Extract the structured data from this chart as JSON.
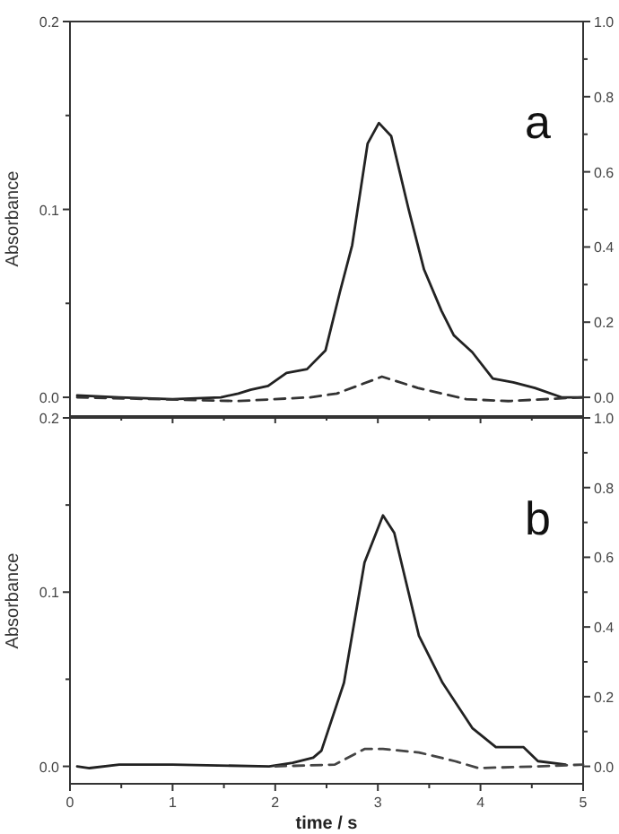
{
  "chart_data": [
    {
      "type": "line",
      "ylabel": "Absorbance",
      "annotations": [
        "a"
      ],
      "tick_labels": "y",
      "marker": "none",
      "xlim": [
        0,
        5
      ],
      "xticks": [
        {
          "value": 0,
          "label": null
        },
        {
          "value": 0.5,
          "label": null
        },
        {
          "value": 1,
          "label": null
        },
        {
          "value": 1.5,
          "label": null
        },
        {
          "value": 2,
          "label": null
        },
        {
          "value": 2.5,
          "label": null
        },
        {
          "value": 3,
          "label": null
        },
        {
          "value": 3.5,
          "label": null
        },
        {
          "value": 4,
          "label": null
        },
        {
          "value": 4.5,
          "label": null
        },
        {
          "value": 5,
          "label": null
        }
      ],
      "ylim": [
        -0.01,
        0.2
      ],
      "yticks": [
        {
          "value": 0,
          "label": "0.0"
        },
        {
          "value": 0.05,
          "label": null
        },
        {
          "value": 0.1,
          "label": "0.1"
        },
        {
          "value": 0.15,
          "label": null
        },
        {
          "value": 0.2,
          "label": "0.2"
        }
      ],
      "y2lim": [
        -0.05,
        1.0
      ],
      "y2ticks": [
        {
          "value": 0,
          "label": "0.0"
        },
        {
          "value": 0.1,
          "label": null
        },
        {
          "value": 0.2,
          "label": "0.2"
        },
        {
          "value": 0.3,
          "label": null
        },
        {
          "value": 0.4,
          "label": "0.4"
        },
        {
          "value": 0.5,
          "label": null
        },
        {
          "value": 0.6,
          "label": "0.6"
        },
        {
          "value": 0.7,
          "label": null
        },
        {
          "value": 0.8,
          "label": "0.8"
        },
        {
          "value": 0.9,
          "label": null
        },
        {
          "value": 1.0,
          "label": "1.0"
        }
      ],
      "series": [
        {
          "color": "#222222",
          "line_style": "solid",
          "x": [
            0.07,
            0.48,
            1.0,
            1.47,
            1.64,
            1.76,
            1.93,
            2.11,
            2.31,
            2.49,
            2.63,
            2.75,
            2.9,
            3.01,
            3.13,
            3.3,
            3.45,
            3.62,
            3.74,
            3.92,
            4.12,
            4.32,
            4.53,
            4.79,
            4.99
          ],
          "values": [
            0.001,
            0,
            -0.001,
            0,
            0.002,
            0.004,
            0.006,
            0.013,
            0.015,
            0.025,
            0.056,
            0.081,
            0.135,
            0.146,
            0.139,
            0.1,
            0.068,
            0.046,
            0.033,
            0.024,
            0.01,
            0.008,
            0.005,
            0,
            0
          ]
        },
        {
          "color": "#333333",
          "line_style": "dashed",
          "x": [
            0.07,
            1.64,
            2.34,
            2.6,
            3.04,
            3.39,
            3.86,
            4.27,
            4.99
          ],
          "values": [
            0,
            -0.002,
            0,
            0.002,
            0.011,
            0.005,
            -0.001,
            -0.002,
            0
          ]
        }
      ]
    },
    {
      "type": "line",
      "ylabel": "Absorbance",
      "xlabel": "time / s",
      "annotations": [
        "b"
      ],
      "marker": "none",
      "xlim": [
        0,
        5
      ],
      "xticks": [
        0,
        {
          "value": 0.5,
          "label": null
        },
        1,
        {
          "value": 1.5,
          "label": null
        },
        2,
        {
          "value": 2.5,
          "label": null
        },
        3,
        {
          "value": 3.5,
          "label": null
        },
        4,
        {
          "value": 4.5,
          "label": null
        },
        5
      ],
      "ylim": [
        -0.01,
        0.2
      ],
      "yticks": [
        {
          "value": 0,
          "label": "0.0"
        },
        {
          "value": 0.05,
          "label": null
        },
        {
          "value": 0.1,
          "label": "0.1"
        },
        {
          "value": 0.15,
          "label": null
        },
        {
          "value": 0.2,
          "label": "0.2"
        }
      ],
      "y2lim": [
        -0.05,
        1.0
      ],
      "y2ticks": [
        {
          "value": 0,
          "label": "0.0"
        },
        {
          "value": 0.1,
          "label": null
        },
        {
          "value": 0.2,
          "label": "0.2"
        },
        {
          "value": 0.3,
          "label": null
        },
        {
          "value": 0.4,
          "label": "0.4"
        },
        {
          "value": 0.5,
          "label": null
        },
        {
          "value": 0.6,
          "label": "0.6"
        },
        {
          "value": 0.7,
          "label": null
        },
        {
          "value": 0.8,
          "label": "0.8"
        },
        {
          "value": 0.9,
          "label": null
        },
        {
          "value": 1.0,
          "label": "1.0"
        }
      ],
      "series": [
        {
          "color": "#222222",
          "line_style": "solid",
          "x": [
            0.07,
            0.19,
            0.48,
            1.0,
            1.94,
            2.17,
            2.37,
            2.45,
            2.67,
            2.87,
            3.05,
            3.16,
            3.4,
            3.63,
            3.92,
            4.15,
            4.42,
            4.56,
            4.83
          ],
          "values": [
            0,
            -0.001,
            0.001,
            0.001,
            0,
            0.002,
            0.005,
            0.009,
            0.048,
            0.117,
            0.144,
            0.134,
            0.075,
            0.048,
            0.022,
            0.011,
            0.011,
            0.003,
            0.001
          ]
        },
        {
          "color": "#444444",
          "line_style": "dashed",
          "x": [
            2.0,
            2.58,
            2.87,
            3.05,
            3.4,
            3.75,
            3.98,
            4.56,
            5.0
          ],
          "values": [
            0,
            0.001,
            0.01,
            0.01,
            0.008,
            0.003,
            -0.001,
            0,
            0.001
          ]
        }
      ]
    }
  ]
}
